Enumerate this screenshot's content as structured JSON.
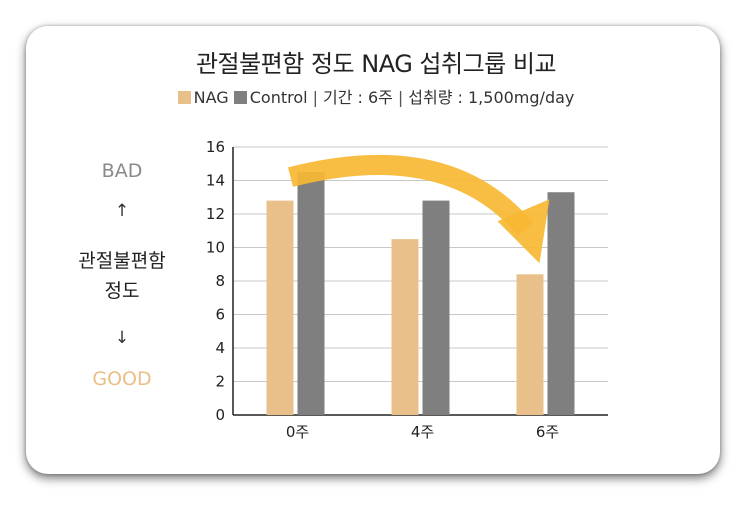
{
  "title": "관절불편함 정도 NAG 섭취그룹 비교",
  "legend": {
    "nag_label": "NAG",
    "control_label": "Control",
    "separator": "|",
    "period": "기간 : 6주",
    "dose": "섭취량 : 1,500mg/day"
  },
  "side_axis": {
    "bad": "BAD",
    "up_arrow": "↑",
    "label_line1": "관절불편함",
    "label_line2": "정도",
    "down_arrow": "↓",
    "good": "GOOD"
  },
  "colors": {
    "nag": "#e9c08a",
    "control": "#7f7f7f",
    "trend_arrow": "#f7b733",
    "good_text": "#e9bf85"
  },
  "chart_data": {
    "type": "bar",
    "title": "관절불편함 정도 NAG 섭취그룹 비교",
    "categories": [
      "0주",
      "4주",
      "6주"
    ],
    "series": [
      {
        "name": "NAG",
        "values": [
          12.8,
          10.5,
          8.4
        ]
      },
      {
        "name": "Control",
        "values": [
          14.5,
          12.8,
          13.3
        ]
      }
    ],
    "ylim": [
      0,
      16
    ],
    "yticks": [
      0,
      2,
      4,
      6,
      8,
      10,
      12,
      14,
      16
    ],
    "grid": true,
    "legend_position": "top",
    "annotation": "decreasing-trend-arrow"
  }
}
